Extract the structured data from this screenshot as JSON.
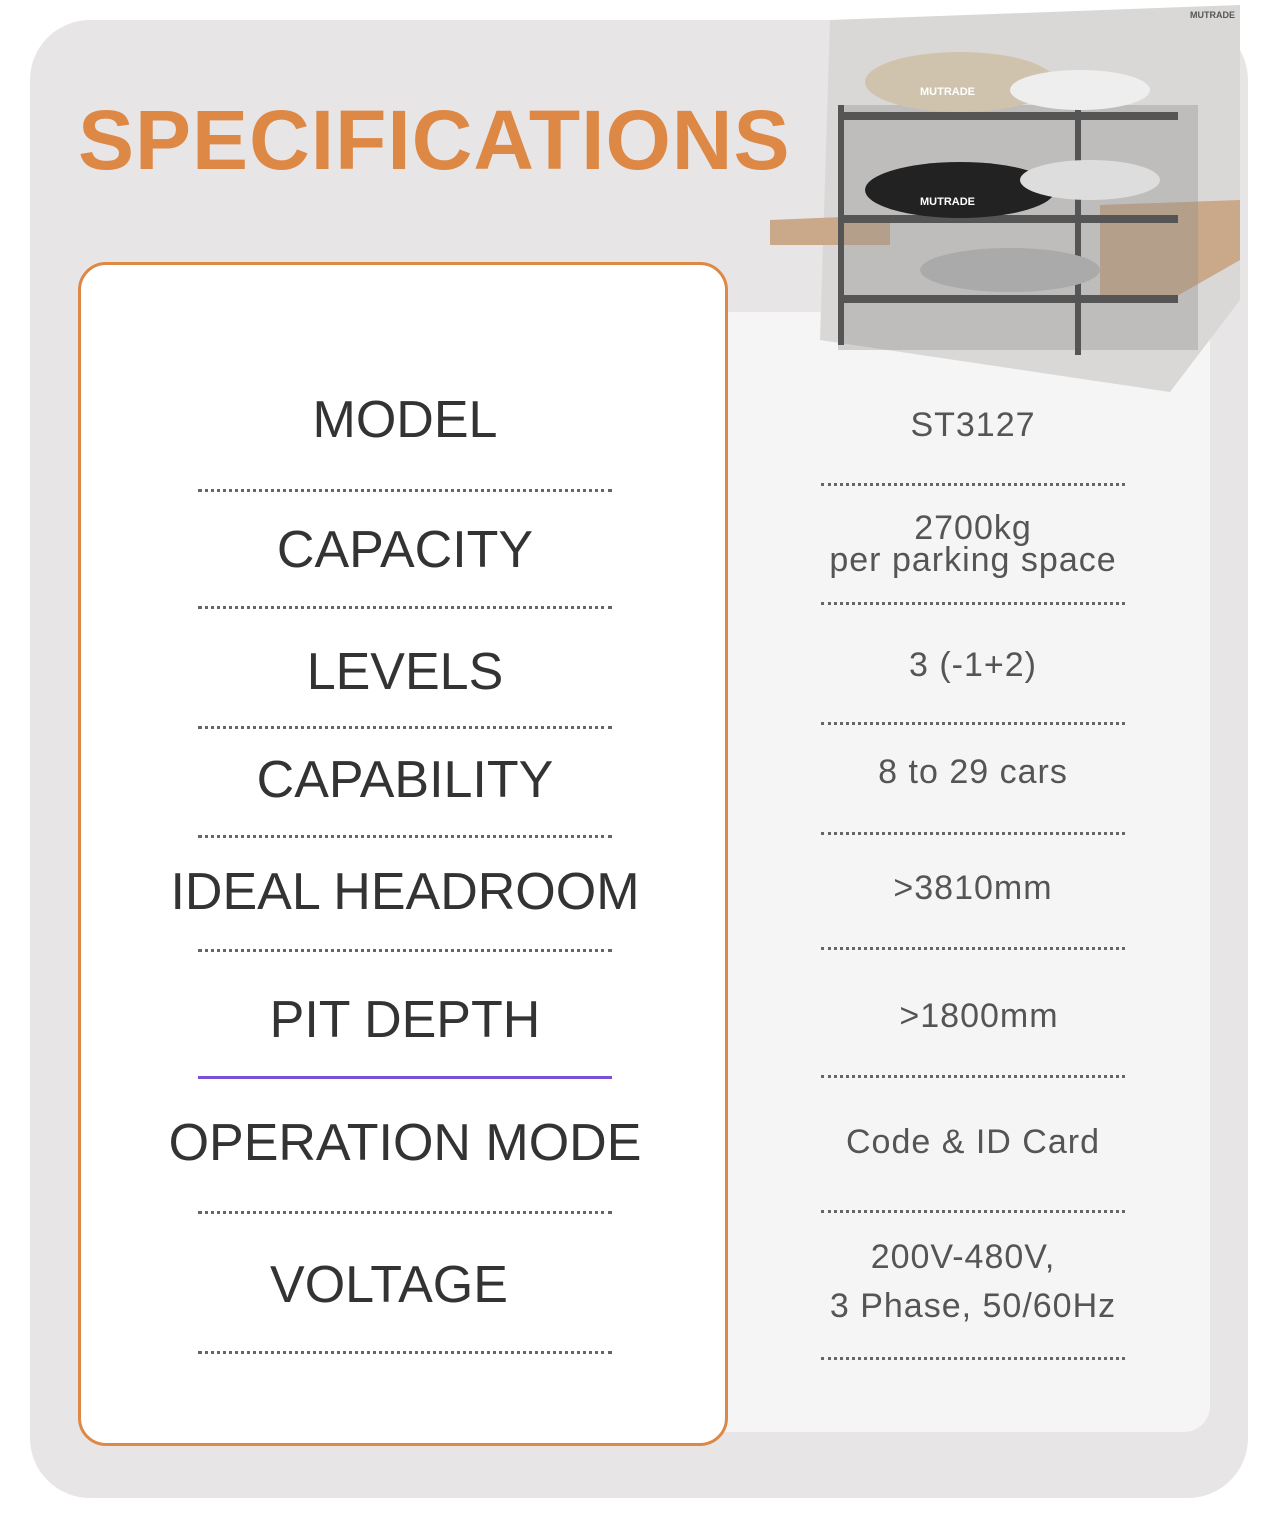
{
  "title": "SPECIFICATIONS",
  "image": {
    "brand_logo": "MUTRADE",
    "description_icon": "parking-system-image"
  },
  "colors": {
    "accent": "#de8845",
    "panel": "#e7e5e6",
    "highlight_separator": "#7b4fd6"
  },
  "specs": [
    {
      "label": "MODEL",
      "value": "ST3127"
    },
    {
      "label": "CAPACITY",
      "value_line1": "2700kg",
      "value_line2": "per parking space"
    },
    {
      "label": "LEVELS",
      "value": "3 (-1+2)"
    },
    {
      "label": "CAPABILITY",
      "value": "8 to 29 cars"
    },
    {
      "label": "IDEAL HEADROOM",
      "value": ">3810mm"
    },
    {
      "label": "PIT DEPTH",
      "value": ">1800mm"
    },
    {
      "label": "OPERATION MODE",
      "value": "Code & ID Card"
    },
    {
      "label": "VOLTAGE",
      "value_line1": "200V-480V,",
      "value_line2": "3 Phase, 50/60Hz"
    }
  ]
}
